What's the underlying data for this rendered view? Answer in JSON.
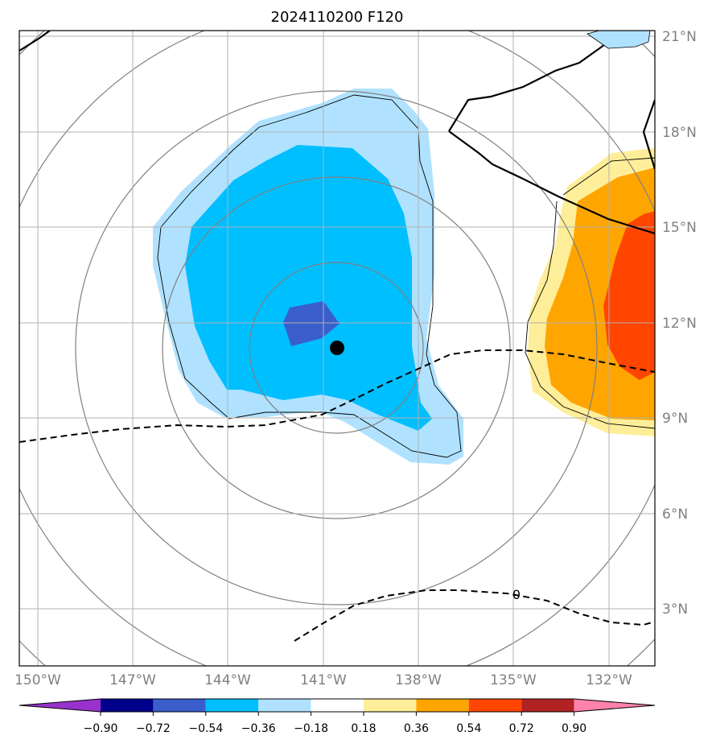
{
  "title": "2024110200 F120",
  "lat_labels": [
    "21°N",
    "18°N",
    "15°N",
    "12°N",
    "9°N",
    "6°N",
    "3°N"
  ],
  "lon_labels": [
    "150°W",
    "147°W",
    "144°W",
    "141°W",
    "138°W",
    "135°W",
    "132°W"
  ],
  "colorbar": {
    "levels": [
      "−0.90",
      "−0.72",
      "−0.54",
      "−0.36",
      "−0.18",
      "0.18",
      "0.36",
      "0.54",
      "0.72",
      "0.90"
    ],
    "colors": [
      "#9932cc",
      "#00008b",
      "#3a5fcd",
      "#00bfff",
      "#b0e2ff",
      "#ffffff",
      "#ffee99",
      "#ffa500",
      "#ff4500",
      "#b22222",
      "#ff82ab"
    ]
  },
  "contour_zero_label": "0",
  "colors": {
    "land": "#000000",
    "grid": "#b0b0b0",
    "rings": "#808080",
    "center": "#000000"
  }
}
